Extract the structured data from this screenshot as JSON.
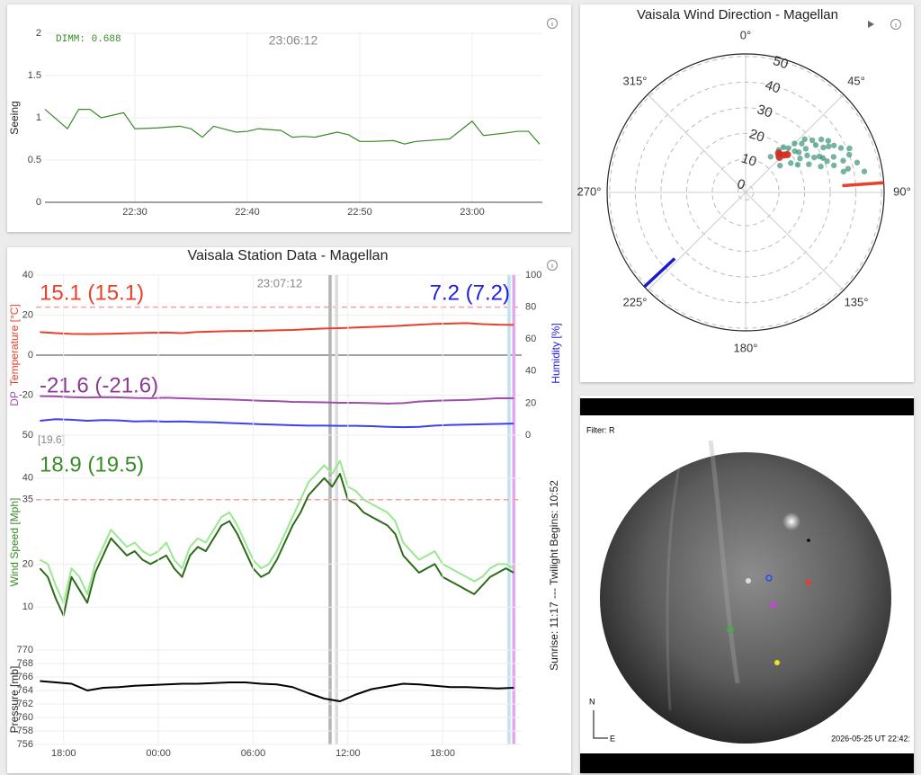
{
  "chart_data": [
    {
      "type": "line",
      "x": [
        "22:22",
        "22:24",
        "22:25",
        "22:26",
        "22:27",
        "22:29",
        "22:30",
        "22:32",
        "22:34",
        "22:35",
        "22:36",
        "22:37",
        "22:39",
        "22:40",
        "22:41",
        "22:43",
        "22:44",
        "22:45",
        "22:46",
        "22:48",
        "22:49",
        "22:50",
        "22:51",
        "22:53",
        "22:54",
        "22:55",
        "22:57",
        "22:58",
        "23:00",
        "23:01",
        "23:03",
        "23:04",
        "23:05",
        "23:06"
      ],
      "series": [
        {
          "color": "#3a8a2a",
          "values": [
            1.1,
            0.87,
            1.1,
            1.1,
            1.0,
            1.06,
            0.87,
            0.88,
            0.9,
            0.87,
            0.77,
            0.9,
            0.83,
            0.84,
            0.87,
            0.85,
            0.77,
            0.78,
            0.77,
            0.83,
            0.8,
            0.72,
            0.72,
            0.73,
            0.69,
            0.72,
            0.74,
            0.75,
            0.96,
            0.79,
            0.82,
            0.84,
            0.84,
            0.688
          ]
        }
      ],
      "xlim": [
        "22:22",
        "23:06"
      ],
      "xticks": [
        "22:30",
        "22:40",
        "22:50",
        "23:00"
      ],
      "ylim": [
        0,
        2
      ],
      "yticks": [
        0,
        0.5,
        1,
        1.5,
        2
      ],
      "grid": true,
      "ylabel": [
        {
          "text": "Seeing",
          "color": "#222222"
        }
      ],
      "annotations": [
        {
          "text": "DIMM: 0.688",
          "color": "#3a8a2a"
        },
        {
          "text": "23:06:12",
          "color": "#888888"
        }
      ]
    },
    {
      "type": "line",
      "title": "Vaisala Station Data - Magellan",
      "x": [
        16.5,
        17.5,
        18.5,
        19.5,
        20.5,
        21.5,
        22.5,
        23.5,
        24.5,
        25.5,
        26.5,
        27.5,
        28.5,
        29.5,
        30.5,
        31.5,
        32.5,
        33.5,
        34.5,
        35.5,
        36.5,
        37.5,
        38.5,
        39.5,
        40.5,
        41.5,
        42.5,
        43.5,
        44.5,
        45.5,
        46.5
      ],
      "series": [
        {
          "color": "#e8402a",
          "values": [
            11.5,
            11.0,
            10.6,
            10.5,
            10.6,
            10.8,
            11.0,
            11.2,
            11.3,
            11.0,
            11.6,
            11.8,
            12.0,
            12.1,
            12.2,
            12.4,
            12.6,
            13.0,
            13.3,
            13.5,
            13.8,
            14.1,
            14.4,
            14.8,
            15.2,
            15.6,
            15.8,
            16.0,
            15.5,
            15.2,
            15.1
          ]
        },
        {
          "color": "#a04fa8",
          "values": [
            -20.5,
            -20.6,
            -21.0,
            -21.2,
            -21.0,
            -21.1,
            -21.4,
            -21.5,
            -21.3,
            -21.6,
            -21.8,
            -22.0,
            -22.2,
            -22.5,
            -22.8,
            -23.0,
            -23.4,
            -23.5,
            -23.6,
            -23.8,
            -23.8,
            -24.0,
            -24.2,
            -24.0,
            -23.2,
            -22.8,
            -22.6,
            -22.4,
            -22.0,
            -21.5,
            -21.6
          ]
        },
        {
          "color": "#4040f0",
          "axis": "y2",
          "values": [
            9.0,
            10.0,
            9.6,
            9.0,
            9.4,
            9.2,
            8.6,
            8.8,
            8.4,
            8.6,
            8.2,
            8.0,
            7.6,
            7.2,
            6.8,
            6.5,
            6.2,
            6.0,
            6.0,
            5.8,
            5.8,
            5.6,
            5.2,
            5.0,
            5.2,
            6.0,
            6.4,
            6.6,
            6.8,
            7.0,
            7.2
          ]
        }
      ],
      "xlim": [
        16.25,
        47
      ],
      "ylim": [
        -40,
        40
      ],
      "yticks": [
        -20,
        0,
        20,
        40
      ],
      "y2lim": [
        0,
        100
      ],
      "y2ticks": [
        0,
        20,
        40,
        60,
        80,
        100
      ],
      "grid": true,
      "y2_threshold": 80,
      "vlines": [
        {
          "x": 34.87,
          "color": "#b4b4b4"
        },
        {
          "x": 35.28,
          "color": "#dcdcdc"
        },
        {
          "x": 46.2,
          "color": "#bfe3f2"
        },
        {
          "x": 46.5,
          "color": "#e4a8f0"
        }
      ],
      "ylabel": [
        {
          "text": "DP",
          "color": "#a04fa8"
        },
        {
          "text": "Temperature [°C]",
          "color": "#e8402a"
        }
      ],
      "y2label": [
        {
          "text": "Humidity [%]",
          "color": "#2020e0"
        }
      ],
      "annotations": [
        {
          "text": "23:07:12",
          "color": "#888888"
        },
        {
          "text": "15.1 (15.1)",
          "color": "#e8402a"
        },
        {
          "text": "7.2 (7.2)",
          "color": "#2020e0"
        },
        {
          "text": "-21.6 (-21.6)",
          "color": "#8a3a92"
        }
      ]
    },
    {
      "type": "line",
      "x": [
        16.5,
        17,
        17.5,
        18,
        18.5,
        19,
        19.5,
        20,
        20.5,
        21,
        21.5,
        22,
        22.5,
        23,
        23.5,
        24,
        24.5,
        25,
        25.5,
        26,
        26.5,
        27,
        27.5,
        28,
        28.5,
        29,
        29.5,
        30,
        30.5,
        31,
        31.5,
        32,
        32.5,
        33,
        33.5,
        34,
        34.5,
        35,
        35.5,
        36,
        36.5,
        37,
        37.5,
        38,
        38.5,
        39,
        39.5,
        40,
        40.5,
        41,
        41.5,
        42,
        42.5,
        43,
        43.5,
        44,
        44.5,
        45,
        45.5,
        46,
        46.5
      ],
      "series": [
        {
          "color": "#98e890",
          "values": [
            21,
            20,
            15,
            11,
            19,
            17,
            13,
            20,
            24,
            28,
            26,
            24,
            25,
            23,
            22,
            23,
            25,
            21,
            19,
            24,
            26,
            25,
            28,
            31,
            32,
            29,
            25,
            21,
            19,
            20,
            23,
            27,
            31,
            35,
            39,
            41,
            43,
            41,
            44,
            38,
            37,
            35,
            34,
            33,
            32,
            30,
            25,
            23,
            21,
            22,
            23,
            20,
            19,
            18,
            17,
            16,
            17,
            19,
            20,
            20,
            19
          ]
        },
        {
          "color": "#2d6a1a",
          "values": [
            19,
            17,
            12,
            8,
            17,
            14,
            11,
            18,
            22,
            26,
            24,
            22,
            23,
            21,
            20,
            21,
            22,
            19,
            17,
            22,
            24,
            23,
            26,
            29,
            30,
            27,
            23,
            19,
            17,
            18,
            21,
            25,
            29,
            32,
            36,
            38,
            40,
            38,
            41,
            35,
            34,
            32,
            31,
            30,
            29,
            27,
            22,
            20,
            18,
            19,
            20,
            17,
            16,
            15,
            14,
            13,
            15,
            17,
            18,
            19,
            18
          ]
        }
      ],
      "xlim": [
        16.25,
        47
      ],
      "ylim": [
        0,
        50
      ],
      "yticks": [
        10,
        20,
        35,
        40,
        50
      ],
      "grid": true,
      "threshold": 35,
      "ylabel": [
        {
          "text": "Wind Speed [Mph]",
          "color": "#3a8a2a"
        }
      ],
      "annotations": [
        {
          "text": "[19.6]",
          "color": "#888888"
        },
        {
          "text": "18.9 (19.5)",
          "color": "#3a8a2a"
        }
      ]
    },
    {
      "type": "line",
      "x": [
        16.5,
        17.5,
        18.5,
        19.5,
        20.5,
        21.5,
        22.5,
        23.5,
        24.5,
        25.5,
        26.5,
        27.5,
        28.5,
        29.5,
        30.5,
        31.5,
        32.5,
        33.5,
        34.5,
        35.5,
        36.5,
        37.5,
        38.5,
        39.5,
        40.5,
        41.5,
        42.5,
        43.5,
        44.5,
        45.5,
        46.5
      ],
      "series": [
        {
          "color": "#000000",
          "values": [
            765.4,
            765.2,
            765.0,
            764.0,
            764.4,
            764.5,
            764.7,
            764.8,
            764.9,
            765.0,
            765.0,
            765.1,
            765.2,
            765.2,
            765.0,
            764.9,
            764.5,
            763.6,
            762.8,
            762.4,
            763.4,
            764.2,
            764.6,
            765.0,
            764.9,
            764.7,
            764.5,
            764.5,
            764.4,
            764.3,
            764.4
          ]
        }
      ],
      "xlim": [
        16.25,
        47
      ],
      "xticks": [
        {
          "value": 18,
          "label": "18:00"
        },
        {
          "value": 24,
          "label": "00:00"
        },
        {
          "value": 30,
          "label": "06:00"
        },
        {
          "value": 36,
          "label": "12:00"
        },
        {
          "value": 42,
          "label": "18:00"
        }
      ],
      "ylim": [
        756,
        770
      ],
      "yticks": [
        756,
        758,
        760,
        762,
        764,
        766,
        768,
        770
      ],
      "grid": true,
      "ylabel": [
        {
          "text": "Pressure [mb]",
          "color": "#222222"
        }
      ],
      "annotations": [
        {
          "text": "Sunrise: 11:17 --- Twilight Begins: 10:52",
          "color": "#222222"
        }
      ]
    },
    {
      "type": "polar",
      "title": "Vaisala Wind Direction - Magellan",
      "rlim": [
        -3,
        51
      ],
      "rticks": [
        0,
        10,
        20,
        30,
        40,
        50
      ],
      "thetaticks": [
        {
          "value": 0,
          "label": "0°"
        },
        {
          "value": 45,
          "label": "45°"
        },
        {
          "value": 90,
          "label": "90°"
        },
        {
          "value": 135,
          "label": "135°"
        },
        {
          "value": 180,
          "label": "180°"
        },
        {
          "value": 225,
          "label": "225°"
        },
        {
          "value": 270,
          "label": "270°"
        },
        {
          "value": 315,
          "label": "315°"
        }
      ],
      "series": [
        {
          "color": "#2e8b6e",
          "theta": [
            40,
            45,
            48,
            52,
            55,
            58,
            60,
            62,
            65,
            68,
            70,
            72,
            75,
            78,
            80,
            50,
            54,
            57,
            63,
            66,
            42,
            47,
            53,
            59,
            64,
            69,
            73,
            77,
            35,
            38,
            44,
            49,
            56,
            61,
            67,
            71,
            58,
            62,
            66,
            52
          ],
          "r": [
            20,
            24,
            28,
            30,
            33,
            35,
            32,
            36,
            38,
            34,
            40,
            37,
            42,
            36,
            44,
            22,
            26,
            18,
            27,
            30,
            16,
            19,
            23,
            25,
            29,
            31,
            33,
            38,
            14,
            18,
            21,
            26,
            30,
            34,
            41,
            28,
            22,
            20,
            24,
            14
          ]
        },
        {
          "color": "#d03020",
          "theta": [
            42,
            46,
            44,
            48,
            40
          ],
          "r": [
            17,
            18,
            16,
            19,
            17
          ]
        }
      ],
      "direction_markers": [
        {
          "theta": 86,
          "color": "#e8402a"
        },
        {
          "theta": 227,
          "color": "#1a1ad0"
        }
      ]
    }
  ],
  "sky_camera": {
    "filter": "Filter: R",
    "compass": [
      "N",
      "E"
    ],
    "timestamp": "2026-05-25 UT 22:42:"
  }
}
